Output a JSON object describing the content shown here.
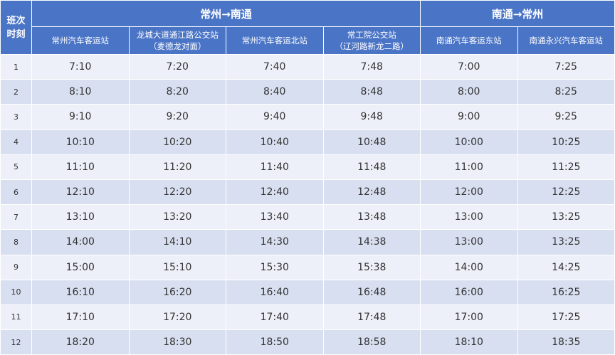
{
  "header": {
    "corner": [
      "班次",
      "时刻"
    ],
    "groups": [
      {
        "label": "常州→南通"
      },
      {
        "label": "南通→常州"
      }
    ],
    "stations": [
      [
        "常州汽车客运站",
        ""
      ],
      [
        "龙城大道通江路公交站",
        "（麦德龙对面）"
      ],
      [
        "常州汽车客运北站",
        ""
      ],
      [
        "常工院公交站",
        "（辽河路新龙二路）"
      ],
      [
        "南通汽车客运东站",
        ""
      ],
      [
        "南通永兴汽车客运站",
        ""
      ]
    ]
  },
  "rows": [
    [
      "1",
      "7:10",
      "7:20",
      "7:40",
      "7:48",
      "7:00",
      "7:25"
    ],
    [
      "2",
      "8:10",
      "8:20",
      "8:40",
      "8:48",
      "8:00",
      "8:25"
    ],
    [
      "3",
      "9:10",
      "9:20",
      "9:40",
      "9:48",
      "9:00",
      "9:25"
    ],
    [
      "4",
      "10:10",
      "10:20",
      "10:40",
      "10:48",
      "10:00",
      "10:25"
    ],
    [
      "5",
      "11:10",
      "11:20",
      "11:40",
      "11:48",
      "11:00",
      "11:25"
    ],
    [
      "6",
      "12:10",
      "12:20",
      "12:40",
      "12:48",
      "12:00",
      "12:25"
    ],
    [
      "7",
      "13:10",
      "13:20",
      "13:40",
      "13:48",
      "13:00",
      "13:25"
    ],
    [
      "8",
      "14:00",
      "14:10",
      "14:30",
      "14:38",
      "13:00",
      "13:25"
    ],
    [
      "9",
      "15:00",
      "15:10",
      "15:30",
      "15:38",
      "14:00",
      "14:25"
    ],
    [
      "10",
      "16:10",
      "16:20",
      "16:40",
      "16:48",
      "16:00",
      "16:25"
    ],
    [
      "11",
      "17:10",
      "17:20",
      "17:40",
      "17:48",
      "17:00",
      "17:25"
    ],
    [
      "12",
      "18:20",
      "18:30",
      "18:50",
      "18:58",
      "18:10",
      "18:35"
    ]
  ],
  "colors": {
    "header": "#4a74c6",
    "row_light": "#edf0f8",
    "row_dark": "#d8dff0"
  }
}
